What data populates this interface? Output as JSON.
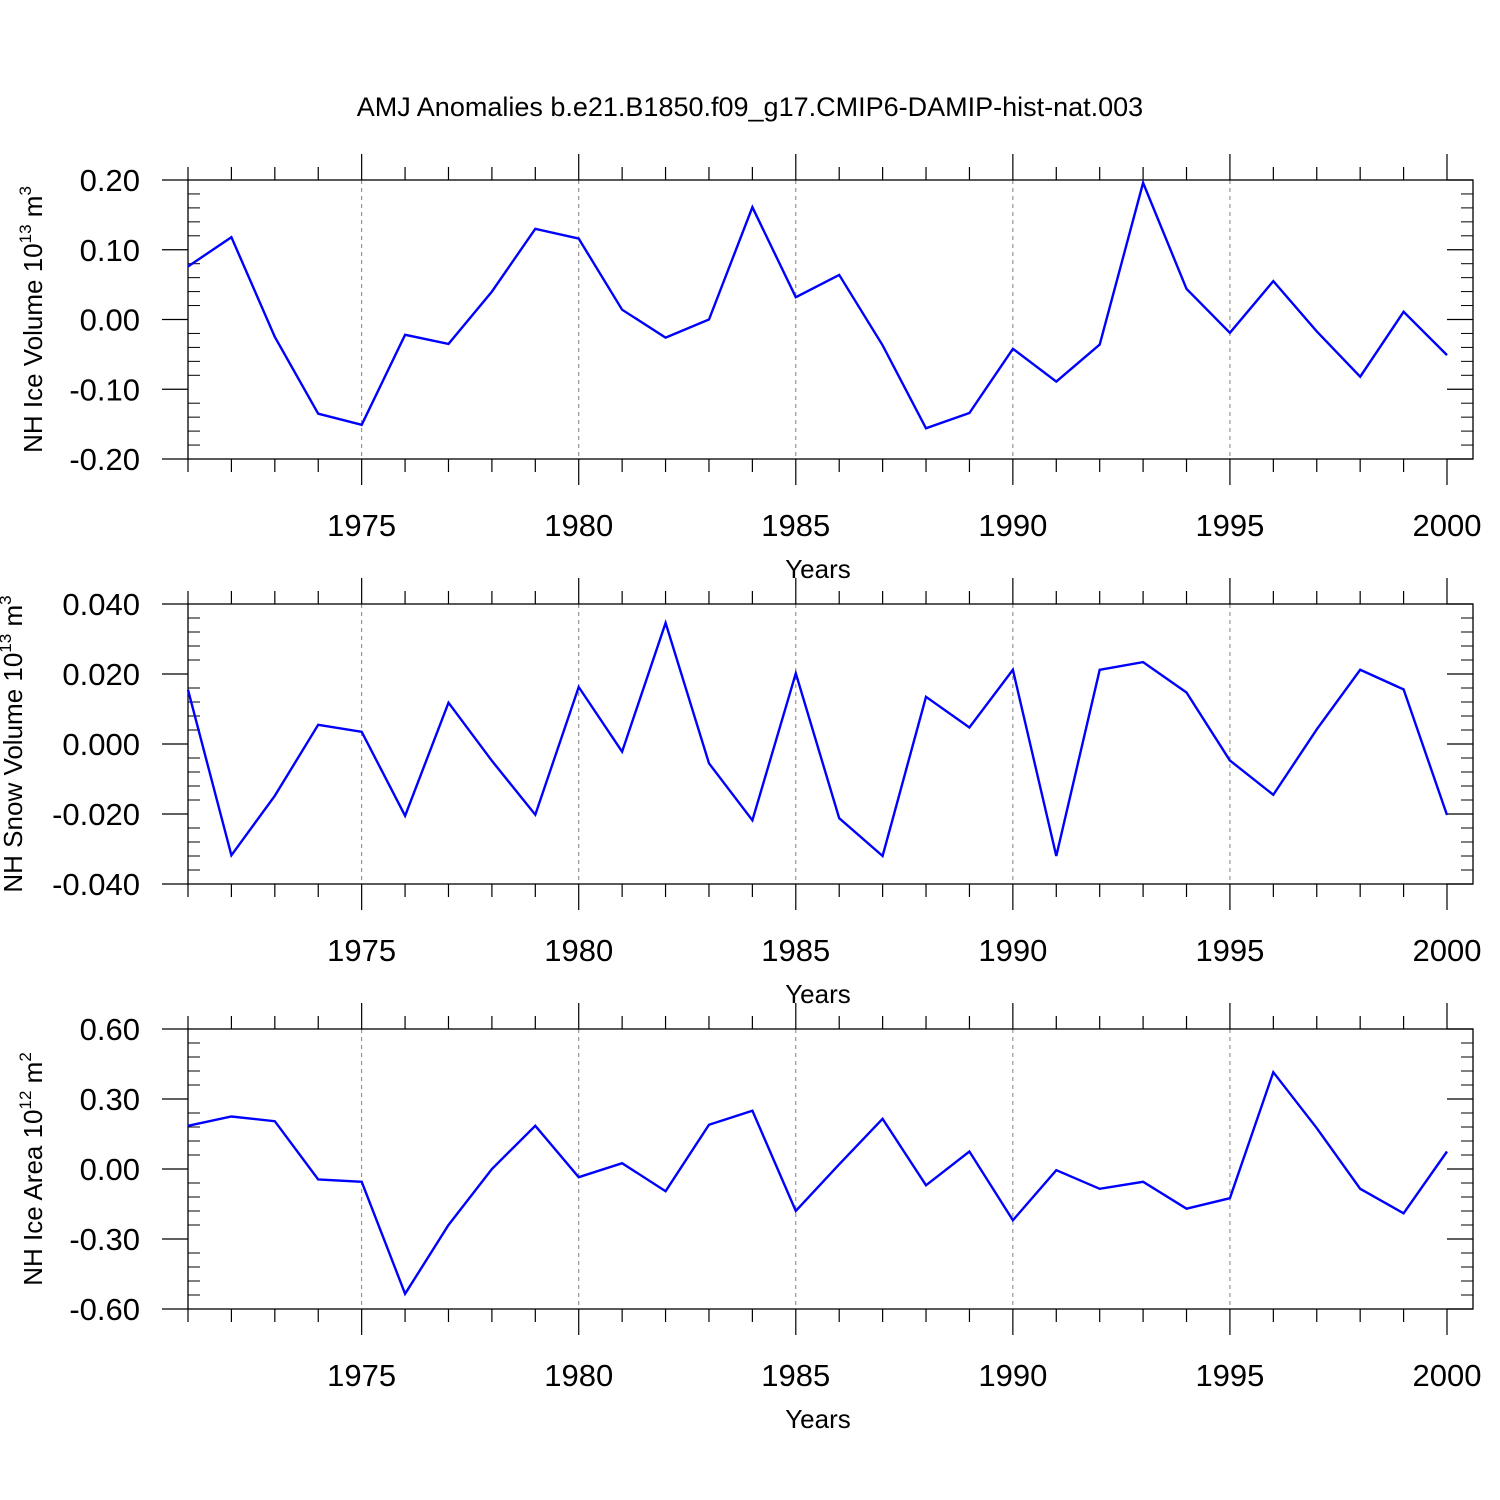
{
  "title": "AMJ Anomalies b.e21.B1850.f09_g17.CMIP6-DAMIP-hist-nat.003",
  "colors": {
    "line": "#0000ff",
    "axes": "#000000",
    "grid": "#808080",
    "background": "#ffffff"
  },
  "chart_data": [
    {
      "type": "line",
      "ylabel": {
        "text": "NH Ice Volume 10",
        "sup": "13",
        "unit": " m",
        "unit_sup": "3"
      },
      "xlabel": "Years",
      "xlim": [
        1971,
        2000
      ],
      "ylim": [
        -0.2,
        0.2
      ],
      "yticks": [
        -0.2,
        -0.1,
        0.0,
        0.1,
        0.2
      ],
      "ytick_labels": [
        "-0.20",
        "-0.10",
        "0.00",
        "0.10",
        "0.20"
      ],
      "xticks": [
        1975,
        1980,
        1985,
        1990,
        1995,
        2000
      ],
      "xtick_labels": [
        "1975",
        "1980",
        "1985",
        "1990",
        "1995",
        "2000"
      ],
      "grid": "vertical dashed at major x ticks",
      "x": [
        1971,
        1972,
        1973,
        1974,
        1975,
        1976,
        1977,
        1978,
        1979,
        1980,
        1981,
        1982,
        1983,
        1984,
        1985,
        1986,
        1987,
        1988,
        1989,
        1990,
        1991,
        1992,
        1993,
        1994,
        1995,
        1996,
        1997,
        1998,
        1999,
        2000
      ],
      "series": [
        {
          "values": [
            0.076,
            0.118,
            -0.025,
            -0.135,
            -0.151,
            -0.022,
            -0.035,
            0.04,
            0.13,
            0.116,
            0.014,
            -0.026,
            0.0,
            0.161,
            0.032,
            0.064,
            -0.037,
            -0.156,
            -0.134,
            -0.042,
            -0.089,
            -0.036,
            0.196,
            0.044,
            -0.019,
            0.055,
            -0.017,
            -0.082,
            0.011,
            -0.051
          ]
        }
      ]
    },
    {
      "type": "line",
      "ylabel": {
        "text": "NH Snow Volume 10",
        "sup": "13",
        "unit": " m",
        "unit_sup": "3"
      },
      "xlabel": "Years",
      "xlim": [
        1971,
        2000
      ],
      "ylim": [
        -0.04,
        0.04
      ],
      "yticks": [
        -0.04,
        -0.02,
        0.0,
        0.02,
        0.04
      ],
      "ytick_labels": [
        "-0.040",
        "-0.020",
        "0.000",
        "0.020",
        "0.040"
      ],
      "xticks": [
        1975,
        1980,
        1985,
        1990,
        1995,
        2000
      ],
      "xtick_labels": [
        "1975",
        "1980",
        "1985",
        "1990",
        "1995",
        "2000"
      ],
      "grid": "vertical dashed at major x ticks",
      "x": [
        1971,
        1972,
        1973,
        1974,
        1975,
        1976,
        1977,
        1978,
        1979,
        1980,
        1981,
        1982,
        1983,
        1984,
        1985,
        1986,
        1987,
        1988,
        1989,
        1990,
        1991,
        1992,
        1993,
        1994,
        1995,
        1996,
        1997,
        1998,
        1999,
        2000
      ],
      "series": [
        {
          "values": [
            0.0155,
            -0.0318,
            -0.0148,
            0.0055,
            0.0035,
            -0.0205,
            0.0118,
            -0.0048,
            -0.0202,
            0.0163,
            -0.0022,
            0.0346,
            -0.0055,
            -0.0218,
            0.0202,
            -0.0212,
            -0.032,
            0.0135,
            0.0047,
            0.0212,
            -0.032,
            0.0212,
            0.0234,
            0.0147,
            -0.0047,
            -0.0145,
            0.0042,
            0.0212,
            0.0156,
            -0.0203
          ]
        }
      ]
    },
    {
      "type": "line",
      "ylabel": {
        "text": "NH Ice Area 10",
        "sup": "12",
        "unit": " m",
        "unit_sup": "2"
      },
      "xlabel": "Years",
      "xlim": [
        1971,
        2000
      ],
      "ylim": [
        -0.6,
        0.6
      ],
      "yticks": [
        -0.6,
        -0.3,
        0.0,
        0.3,
        0.6
      ],
      "ytick_labels": [
        "-0.60",
        "-0.30",
        "0.00",
        "0.30",
        "0.60"
      ],
      "xticks": [
        1975,
        1980,
        1985,
        1990,
        1995,
        2000
      ],
      "xtick_labels": [
        "1975",
        "1980",
        "1985",
        "1990",
        "1995",
        "2000"
      ],
      "grid": "vertical dashed at major x ticks",
      "x": [
        1971,
        1972,
        1973,
        1974,
        1975,
        1976,
        1977,
        1978,
        1979,
        1980,
        1981,
        1982,
        1983,
        1984,
        1985,
        1986,
        1987,
        1988,
        1989,
        1990,
        1991,
        1992,
        1993,
        1994,
        1995,
        1996,
        1997,
        1998,
        1999,
        2000
      ],
      "series": [
        {
          "values": [
            0.185,
            0.225,
            0.205,
            -0.045,
            -0.055,
            -0.535,
            -0.24,
            0.0,
            0.185,
            -0.035,
            0.025,
            -0.095,
            0.19,
            0.25,
            -0.18,
            0.02,
            0.215,
            -0.07,
            0.075,
            -0.22,
            -0.005,
            -0.085,
            -0.055,
            -0.17,
            -0.125,
            0.415,
            0.175,
            -0.085,
            -0.19,
            0.075
          ]
        }
      ]
    }
  ]
}
